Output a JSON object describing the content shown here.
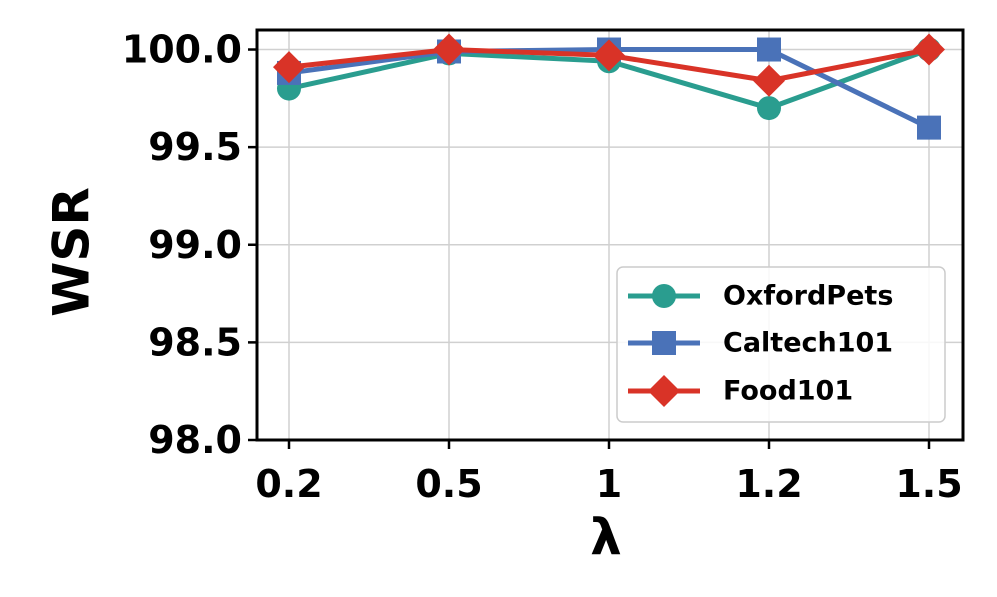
{
  "chart_data": {
    "type": "line",
    "categories": [
      "0.2",
      "0.5",
      "1",
      "1.2",
      "1.5"
    ],
    "series": [
      {
        "name": "OxfordPets",
        "color": "#2a9d8f",
        "marker": "circle",
        "values": [
          99.8,
          99.98,
          99.94,
          99.7,
          100.0
        ]
      },
      {
        "name": "Caltech101",
        "color": "#4a72b8",
        "marker": "square",
        "values": [
          99.88,
          99.99,
          100.0,
          100.0,
          99.6
        ]
      },
      {
        "name": "Food101",
        "color": "#d93327",
        "marker": "diamond",
        "values": [
          99.91,
          100.0,
          99.97,
          99.84,
          100.0
        ]
      }
    ],
    "xlabel": "λ",
    "ylabel": "WSR",
    "ylim": [
      98.0,
      100.1
    ],
    "yticks": [
      "98.0",
      "98.5",
      "99.0",
      "99.5",
      "100.0"
    ],
    "grid": true,
    "legend_position": "lower-right"
  }
}
